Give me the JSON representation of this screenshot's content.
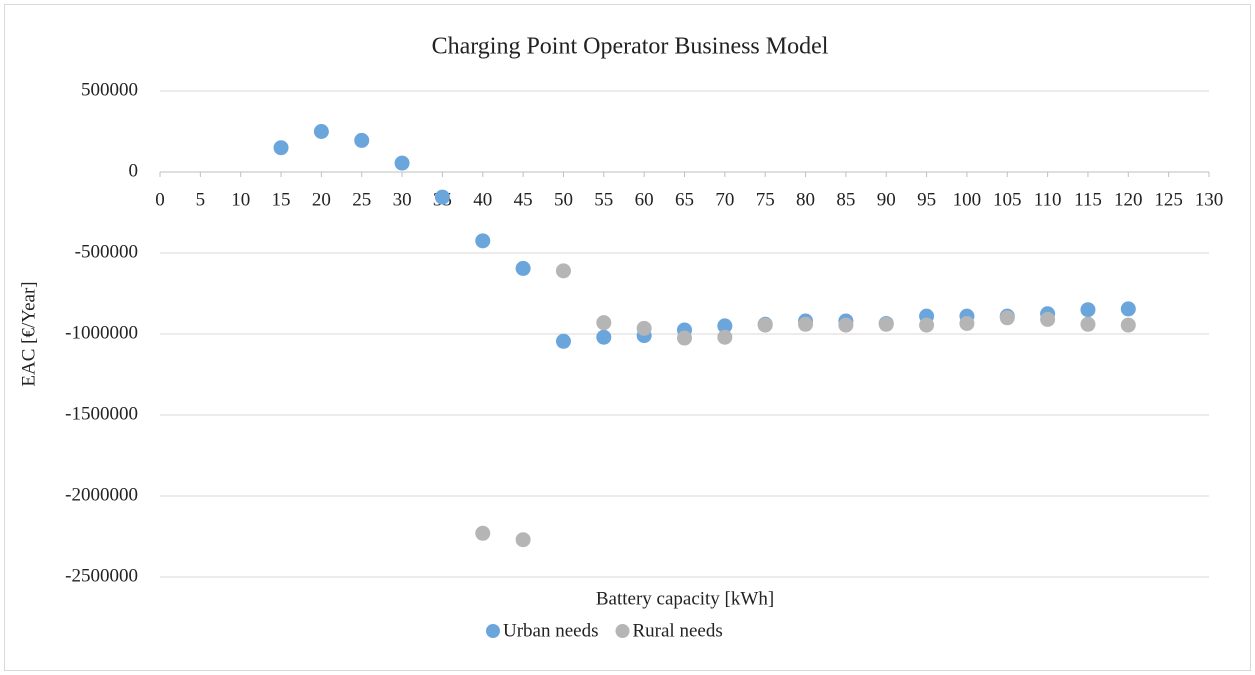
{
  "chart_data": {
    "type": "scatter",
    "title": "Charging Point Operator Business Model",
    "x_label": "Battery capacity [kWh]",
    "y_label": "EAC [€/Year]",
    "x": [
      15,
      20,
      25,
      30,
      35,
      40,
      45,
      50,
      55,
      60,
      65,
      70,
      75,
      80,
      85,
      90,
      95,
      100,
      105,
      110,
      115,
      120
    ],
    "series": [
      {
        "name": "Urban needs",
        "color": "#6aa5dc",
        "values": [
          150000,
          250000,
          195000,
          55000,
          -155000,
          -425000,
          -595000,
          -1045000,
          -1020000,
          -1010000,
          -975000,
          -950000,
          -940000,
          -920000,
          -920000,
          -935000,
          -890000,
          -890000,
          -890000,
          -875000,
          -850000,
          -845000
        ]
      },
      {
        "name": "Rural needs",
        "color": "#b5b5b5",
        "values": [
          null,
          null,
          null,
          null,
          null,
          -2230000,
          -2270000,
          -610000,
          -930000,
          -965000,
          -1025000,
          -1020000,
          -945000,
          -940000,
          -945000,
          -940000,
          -945000,
          -935000,
          -900000,
          -910000,
          -940000,
          -945000
        ]
      }
    ],
    "xlim": [
      0,
      130
    ],
    "xticks": [
      0,
      5,
      10,
      15,
      20,
      25,
      30,
      35,
      40,
      45,
      50,
      55,
      60,
      65,
      70,
      75,
      80,
      85,
      90,
      95,
      100,
      105,
      110,
      115,
      120,
      125,
      130
    ],
    "ylim": [
      -2500000,
      500000
    ],
    "yticks": [
      -2500000,
      -2000000,
      -1500000,
      -1000000,
      -500000,
      0,
      500000
    ],
    "grid": true,
    "legend": "bottom"
  }
}
